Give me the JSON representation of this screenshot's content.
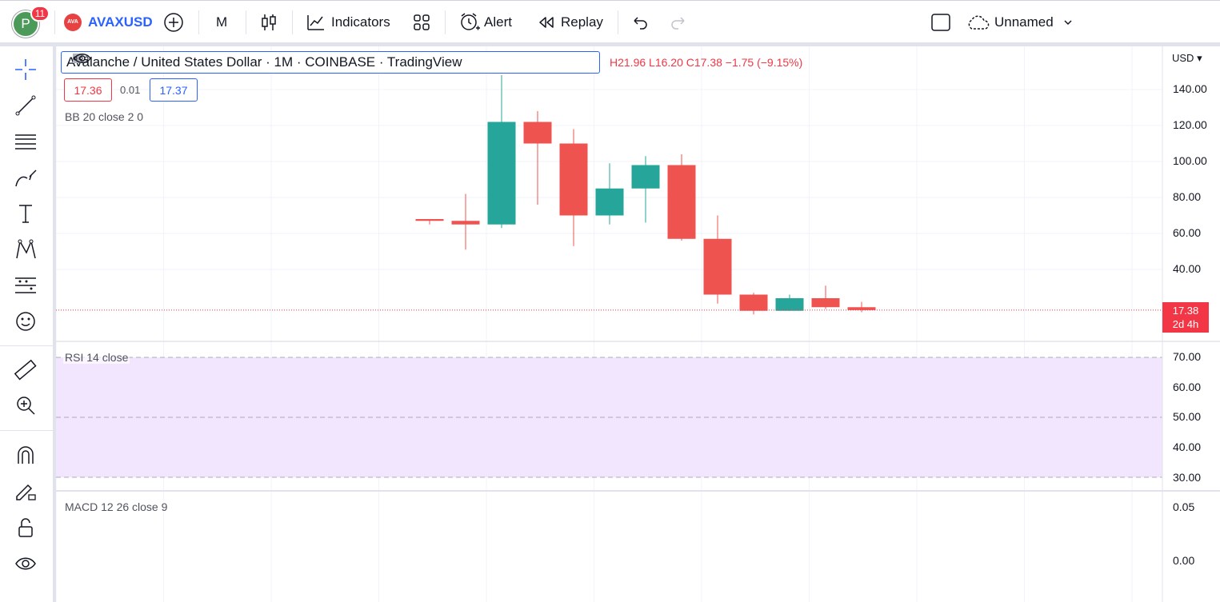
{
  "topbar": {
    "avatar_letter": "P",
    "notifications": "11",
    "symbol_logo": "AVA",
    "symbol": "AVAXUSD",
    "interval": "M",
    "indicators": "Indicators",
    "alert": "Alert",
    "replay": "Replay",
    "layout_name": "Unnamed"
  },
  "legend": {
    "title": "Avalanche / United States Dollar · 1M · COINBASE · TradingView",
    "ohlc": "H21.96  L16.20  C17.38  −1.75 (−9.15%)",
    "sell_price": "17.36",
    "spread": "0.01",
    "buy_price": "17.37"
  },
  "indicators": {
    "bb": "BB 20 close 2 0",
    "rsi": "RSI 14 close",
    "macd": "MACD 12 26 close 9"
  },
  "price_axis": {
    "currency": "USD",
    "ticks": [
      "140.00",
      "120.00",
      "100.00",
      "80.00",
      "60.00",
      "40.00"
    ],
    "last_price": "17.38",
    "countdown": "2d 4h"
  },
  "rsi_axis": {
    "ticks": [
      "70.00",
      "60.00",
      "50.00",
      "40.00",
      "30.00"
    ]
  },
  "macd_axis": {
    "ticks": [
      "0.05",
      "0.00"
    ]
  },
  "colors": {
    "up": "#26a69a",
    "down": "#ef5350",
    "accent": "#2962ff",
    "rsi_band": "#f2e6fe"
  },
  "chart_data": {
    "type": "candlestick",
    "candles": [
      {
        "o": 68,
        "h": 68,
        "l": 65,
        "c": 67
      },
      {
        "o": 67,
        "h": 82,
        "l": 51,
        "c": 65
      },
      {
        "o": 65,
        "h": 148,
        "l": 63,
        "c": 122
      },
      {
        "o": 122,
        "h": 128,
        "l": 76,
        "c": 110
      },
      {
        "o": 110,
        "h": 118,
        "l": 53,
        "c": 70
      },
      {
        "o": 70,
        "h": 99,
        "l": 65,
        "c": 85
      },
      {
        "o": 85,
        "h": 103,
        "l": 66,
        "c": 98
      },
      {
        "o": 98,
        "h": 104,
        "l": 56,
        "c": 57
      },
      {
        "o": 57,
        "h": 70,
        "l": 21,
        "c": 26
      },
      {
        "o": 26,
        "h": 27,
        "l": 15,
        "c": 17
      },
      {
        "o": 17,
        "h": 26,
        "l": 17,
        "c": 24
      },
      {
        "o": 24,
        "h": 31,
        "l": 18,
        "c": 19
      },
      {
        "o": 19,
        "h": 21.96,
        "l": 16.2,
        "c": 17.38
      }
    ],
    "ylim": [
      20,
      140
    ]
  }
}
